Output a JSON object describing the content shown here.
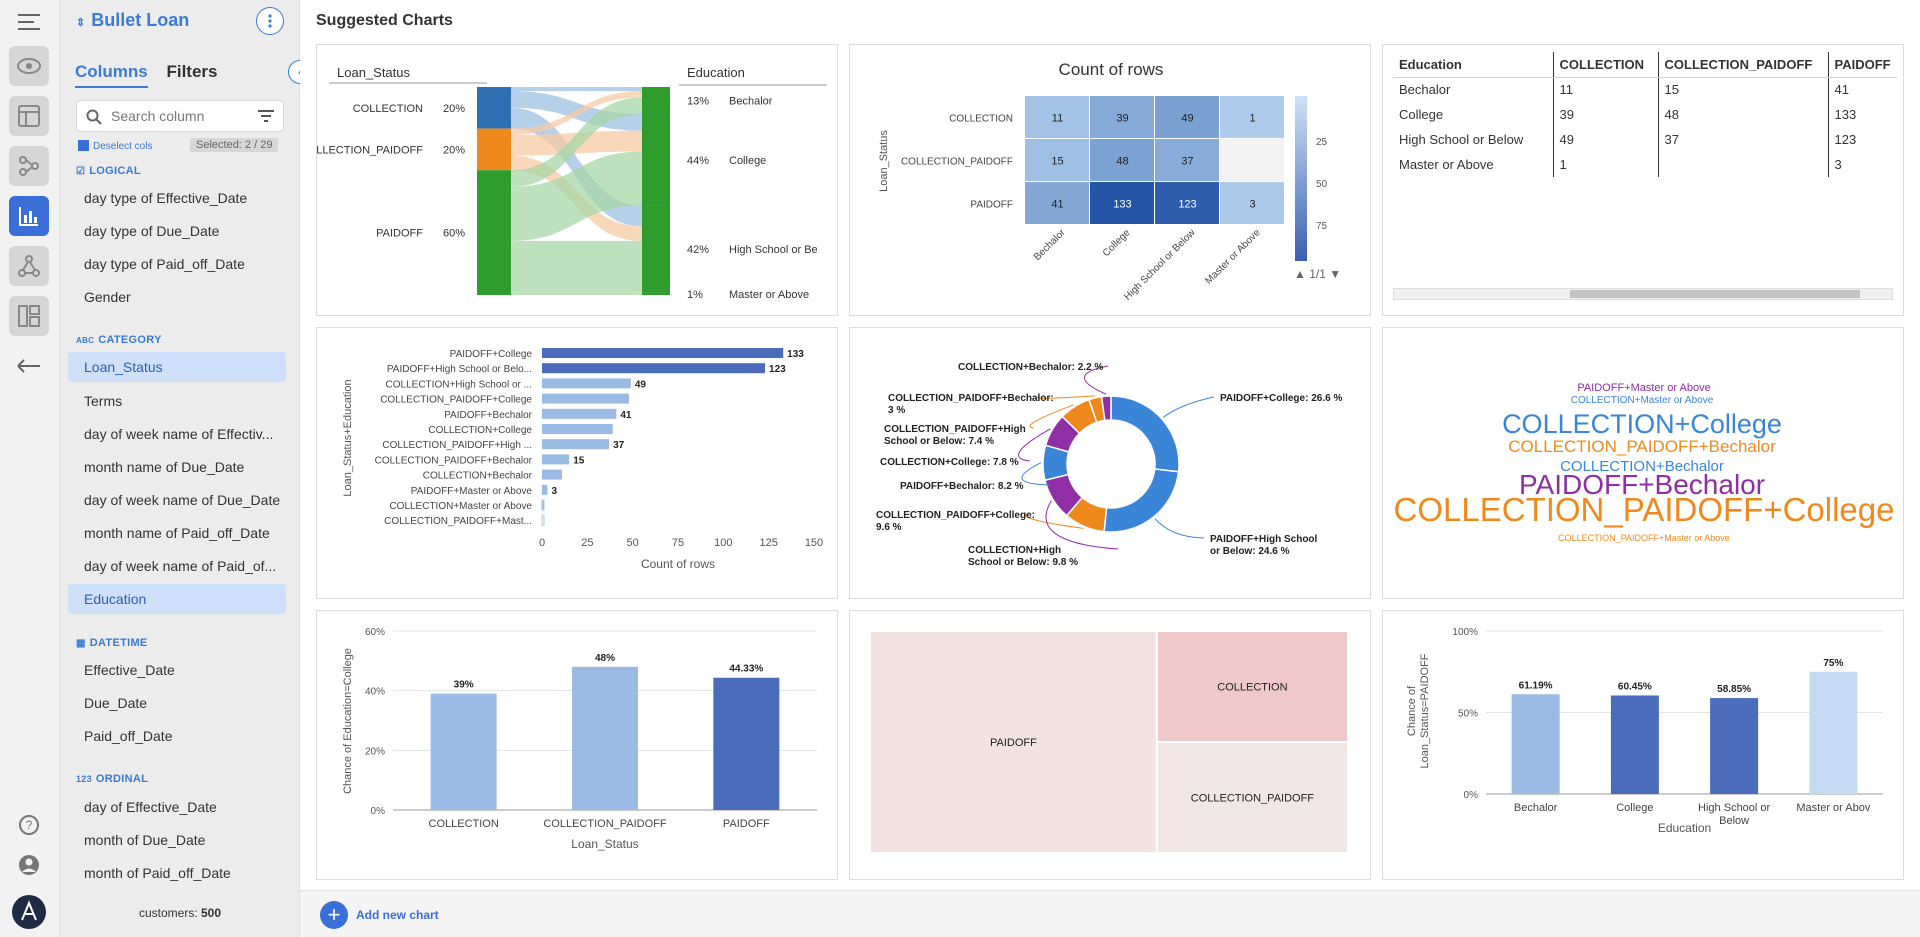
{
  "app": {
    "title": "Bullet Loan",
    "footer_label": "customers:",
    "footer_count": "500"
  },
  "sidebar": {
    "tabs": [
      "Columns",
      "Filters"
    ],
    "search_placeholder": "Search column",
    "deselect_label": "Deselect cols",
    "selected_badge": "Selected: 2 / 29",
    "groups": [
      {
        "name": "LOGICAL",
        "items": [
          "day type of Effective_Date",
          "day type of Due_Date",
          "day type of Paid_off_Date",
          "Gender"
        ]
      },
      {
        "name": "CATEGORY",
        "items": [
          "Loan_Status",
          "Terms",
          "day of week name of Effectiv...",
          "month name of Due_Date",
          "day of week name of Due_Date",
          "month name of Paid_off_Date",
          "day of week name of Paid_of...",
          "Education"
        ]
      },
      {
        "name": "DATETIME",
        "items": [
          "Effective_Date",
          "Due_Date",
          "Paid_off_Date"
        ]
      },
      {
        "name": "ORDINAL",
        "items": [
          "day of Effective_Date",
          "month of Due_Date",
          "month of Paid_off_Date"
        ]
      }
    ],
    "selected_items": [
      "Loan_Status",
      "Education"
    ]
  },
  "main": {
    "heading": "Suggested Charts",
    "add_chart_label": "Add new chart"
  },
  "colors": {
    "accent": "#3a7bd5",
    "blue_dark": "#4a6cbb",
    "blue_mid": "#8fb2e2",
    "blue_light": "#c3dcf3",
    "orange": "#f0891c",
    "green": "#2e9d2e",
    "purple": "#8f2ea5"
  },
  "chart_data": [
    {
      "type": "sankey",
      "left_header": "Loan_Status",
      "right_header": "Education",
      "left": [
        {
          "label": "COLLECTION",
          "pct": "20%",
          "share": 0.2
        },
        {
          "label": "COLLECTION_PAIDOFF",
          "pct": "20%",
          "share": 0.2
        },
        {
          "label": "PAIDOFF",
          "pct": "60%",
          "share": 0.6
        }
      ],
      "right": [
        {
          "pct": "13%",
          "label": "Bechalor"
        },
        {
          "pct": "44%",
          "label": "College"
        },
        {
          "pct": "42%",
          "label": "High School or Be"
        },
        {
          "pct": "1%",
          "label": "Master or Above"
        }
      ]
    },
    {
      "type": "heatmap",
      "title": "Count of rows",
      "ylabel": "Loan_Status",
      "rows": [
        "COLLECTION",
        "COLLECTION_PAIDOFF",
        "PAIDOFF"
      ],
      "cols": [
        "Bechalor",
        "College",
        "High School or Below",
        "Master or Above"
      ],
      "values": [
        [
          11,
          39,
          49,
          1
        ],
        [
          15,
          48,
          37,
          null
        ],
        [
          41,
          133,
          123,
          3
        ]
      ],
      "legend_ticks": [
        "25",
        "50",
        "75"
      ],
      "page": "1/1"
    },
    {
      "type": "table",
      "header": [
        "Education",
        "COLLECTION",
        "COLLECTION_PAIDOFF",
        "PAIDOFF"
      ],
      "rows": [
        [
          "Bechalor",
          "11",
          "15",
          "41"
        ],
        [
          "College",
          "39",
          "48",
          "133"
        ],
        [
          "High School or Below",
          "49",
          "37",
          "123"
        ],
        [
          "Master or Above",
          "1",
          "",
          "3"
        ]
      ]
    },
    {
      "type": "bar",
      "orientation": "horizontal",
      "ylabel": "Loan_Status+Education",
      "xlabel": "Count of rows",
      "categories": [
        "PAIDOFF+College",
        "PAIDOFF+High School or Belo...",
        "COLLECTION+High School or ...",
        "COLLECTION_PAIDOFF+College",
        "PAIDOFF+Bechalor",
        "COLLECTION+College",
        "COLLECTION_PAIDOFF+High ...",
        "COLLECTION_PAIDOFF+Bechalor",
        "COLLECTION+Bechalor",
        "PAIDOFF+Master or Above",
        "COLLECTION+Master or Above",
        "COLLECTION_PAIDOFF+Mast..."
      ],
      "values": [
        133,
        123,
        49,
        48,
        41,
        39,
        37,
        15,
        11,
        3,
        1,
        0
      ],
      "labeled": [
        "133",
        "123",
        "49",
        "",
        "41",
        "",
        "37",
        "15",
        "",
        "3",
        "",
        ""
      ],
      "xticks": [
        "0",
        "25",
        "50",
        "75",
        "100",
        "125",
        "150"
      ],
      "xlim": [
        0,
        150
      ]
    },
    {
      "type": "pie",
      "donut": true,
      "slices": [
        {
          "label": "PAIDOFF+College: 26.6 %",
          "value": 26.6,
          "color": "#3a85d8"
        },
        {
          "label": "PAIDOFF+High School or Below: 24.6 %",
          "value": 24.6,
          "color": "#3a85d8"
        },
        {
          "label": "COLLECTION_PAIDOFF+College: 9.6 %",
          "value": 9.6,
          "color": "#f0891c"
        },
        {
          "label": "COLLECTION+High School or Below: 9.8 %",
          "value": 9.8,
          "color": "#8f2ea5"
        },
        {
          "label": "PAIDOFF+Bechalor: 8.2 %",
          "value": 8.2,
          "color": "#3a85d8"
        },
        {
          "label": "COLLECTION+College: 7.8 %",
          "value": 7.8,
          "color": "#8f2ea5"
        },
        {
          "label": "COLLECTION_PAIDOFF+High School or Below: 7.4 %",
          "value": 7.4,
          "color": "#f0891c"
        },
        {
          "label": "COLLECTION_PAIDOFF+Bechalor: 3 %",
          "value": 3,
          "color": "#f0891c"
        },
        {
          "label": "COLLECTION+Bechalor: 2.2 %",
          "value": 2.2,
          "color": "#8f2ea5"
        }
      ]
    },
    {
      "type": "wordcloud",
      "words": [
        {
          "text": "PAIDOFF+Master or Above",
          "color": "#8f2ea5"
        },
        {
          "text": "COLLECTION+Master or Above",
          "color": "#3a85d8"
        },
        {
          "text": "COLLECTION+College",
          "color": "#3a85d8"
        },
        {
          "text": "COLLECTION_PAIDOFF+Bechalor",
          "color": "#f0891c"
        },
        {
          "text": "COLLECTION+Bechalor",
          "color": "#3a85d8"
        },
        {
          "text": "PAIDOFF+Bechalor",
          "color": "#8f2ea5"
        },
        {
          "text": "COLLECTION_PAIDOFF+College",
          "color": "#f0891c"
        },
        {
          "text": "COLLECTION_PAIDOFF+Master or Above",
          "color": "#f0891c"
        }
      ]
    },
    {
      "type": "bar",
      "ylabel": "Chance of Education=College",
      "xlabel": "Loan_Status",
      "categories": [
        "COLLECTION",
        "COLLECTION_PAIDOFF",
        "PAIDOFF"
      ],
      "values": [
        39,
        48,
        44.33
      ],
      "value_labels": [
        "39%",
        "48%",
        "44.33%"
      ],
      "yticks": [
        "0%",
        "20%",
        "40%",
        "60%"
      ],
      "ylim": [
        0,
        60
      ],
      "colors": [
        "#9bbbe4",
        "#9bbbe4",
        "#4a6cbb"
      ]
    },
    {
      "type": "treemap",
      "items": [
        {
          "label": "PAIDOFF",
          "share": 0.6,
          "color": "#f2e2e2"
        },
        {
          "label": "COLLECTION",
          "share": 0.2,
          "color": "#efc9c9"
        },
        {
          "label": "COLLECTION_PAIDOFF",
          "share": 0.2,
          "color": "#f1e6e6"
        }
      ]
    },
    {
      "type": "bar",
      "ylabel": "Chance of Loan_Status=PAIDOFF",
      "xlabel": "Education",
      "categories": [
        "Bechalor",
        "College",
        "High School or Below",
        "Master or Above"
      ],
      "values": [
        61.19,
        60.45,
        58.85,
        75
      ],
      "value_labels": [
        "61.19%",
        "60.45%",
        "58.85%",
        "75%"
      ],
      "yticks": [
        "0%",
        "50%",
        "100%"
      ],
      "ylim": [
        0,
        100
      ],
      "colors": [
        "#9bbbe4",
        "#4a6cbb",
        "#4a6cbb",
        "#c3dcf3"
      ]
    }
  ]
}
